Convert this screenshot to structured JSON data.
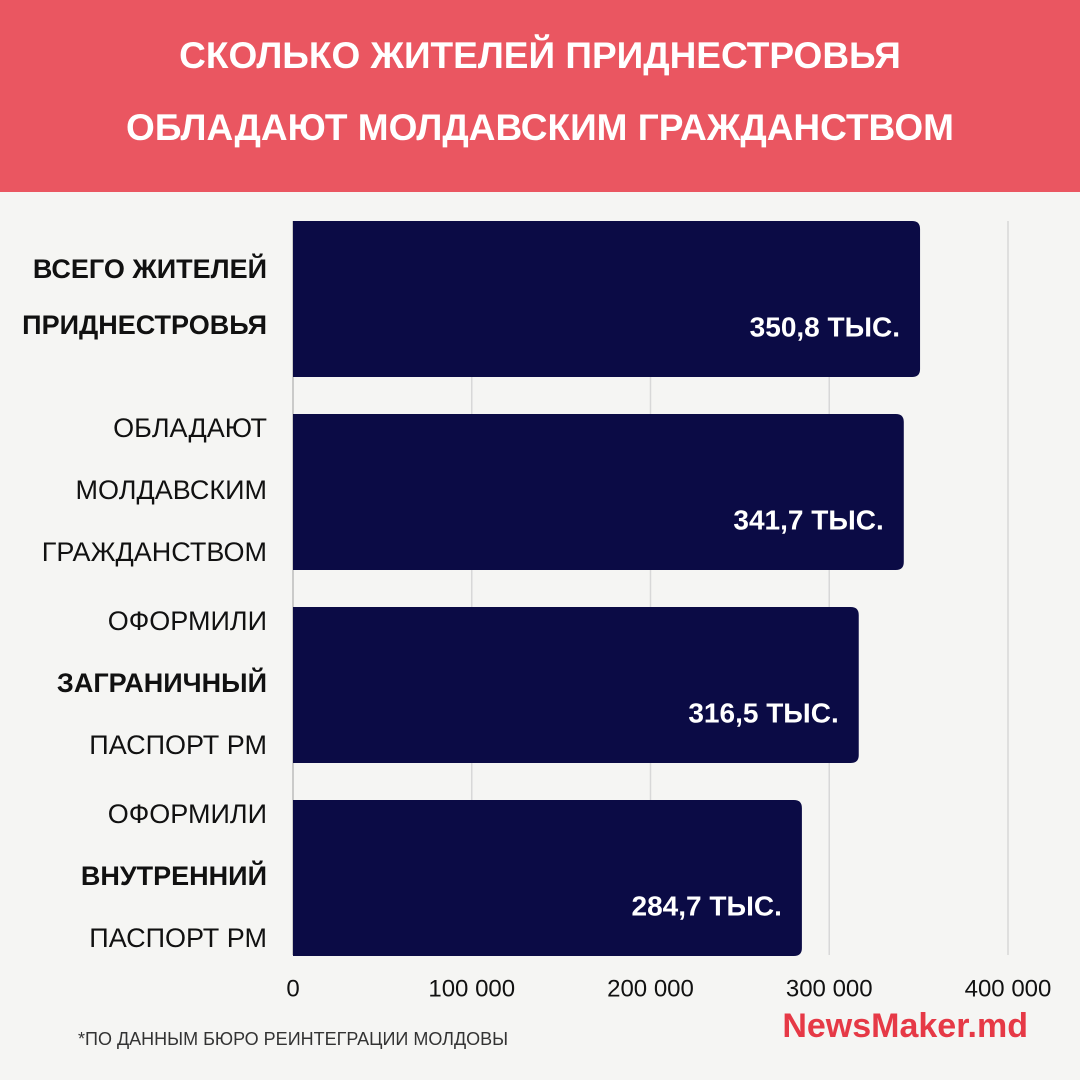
{
  "chart_data": {
    "type": "bar",
    "orientation": "horizontal",
    "title": [
      "СКОЛЬКО ЖИТЕЛЕЙ ПРИДНЕСТРОВЬЯ",
      "ОБЛАДАЮТ МОЛДАВСКИМ ГРАЖДАНСТВОМ"
    ],
    "categories": [
      [
        "ВСЕГО ЖИТЕЛЕЙ",
        "ПРИДНЕСТРОВЬЯ"
      ],
      [
        "ОБЛАДАЮТ",
        "МОЛДАВСКИМ",
        "ГРАЖДАНСТВОМ"
      ],
      [
        "ОФОРМИЛИ",
        "ЗАГРАНИЧНЫЙ",
        "ПАСПОРТ РМ"
      ],
      [
        "ОФОРМИЛИ",
        "ВНУТРЕННИЙ",
        "ПАСПОРТ РМ"
      ]
    ],
    "values": [
      350800,
      341700,
      316500,
      284700
    ],
    "value_labels": [
      "350,8 ТЫС.",
      "341,7 ТЫС.",
      "316,5 ТЫС.",
      "284,7 ТЫС."
    ],
    "color": "#0b0b45",
    "xlim": [
      0,
      400000
    ],
    "xticks": [
      0,
      {
        "value": 100000,
        "label": "100 000"
      },
      {
        "value": 200000,
        "label": "200 000"
      },
      {
        "value": 300000,
        "label": "300 000"
      },
      {
        "value": 400000,
        "label": "400 000"
      }
    ],
    "grid": true,
    "footnote": "*ПО ДАННЫМ БЮРО РЕИНТЕГРАЦИИ МОЛДОВЫ",
    "source": "NewsMaker.md"
  }
}
